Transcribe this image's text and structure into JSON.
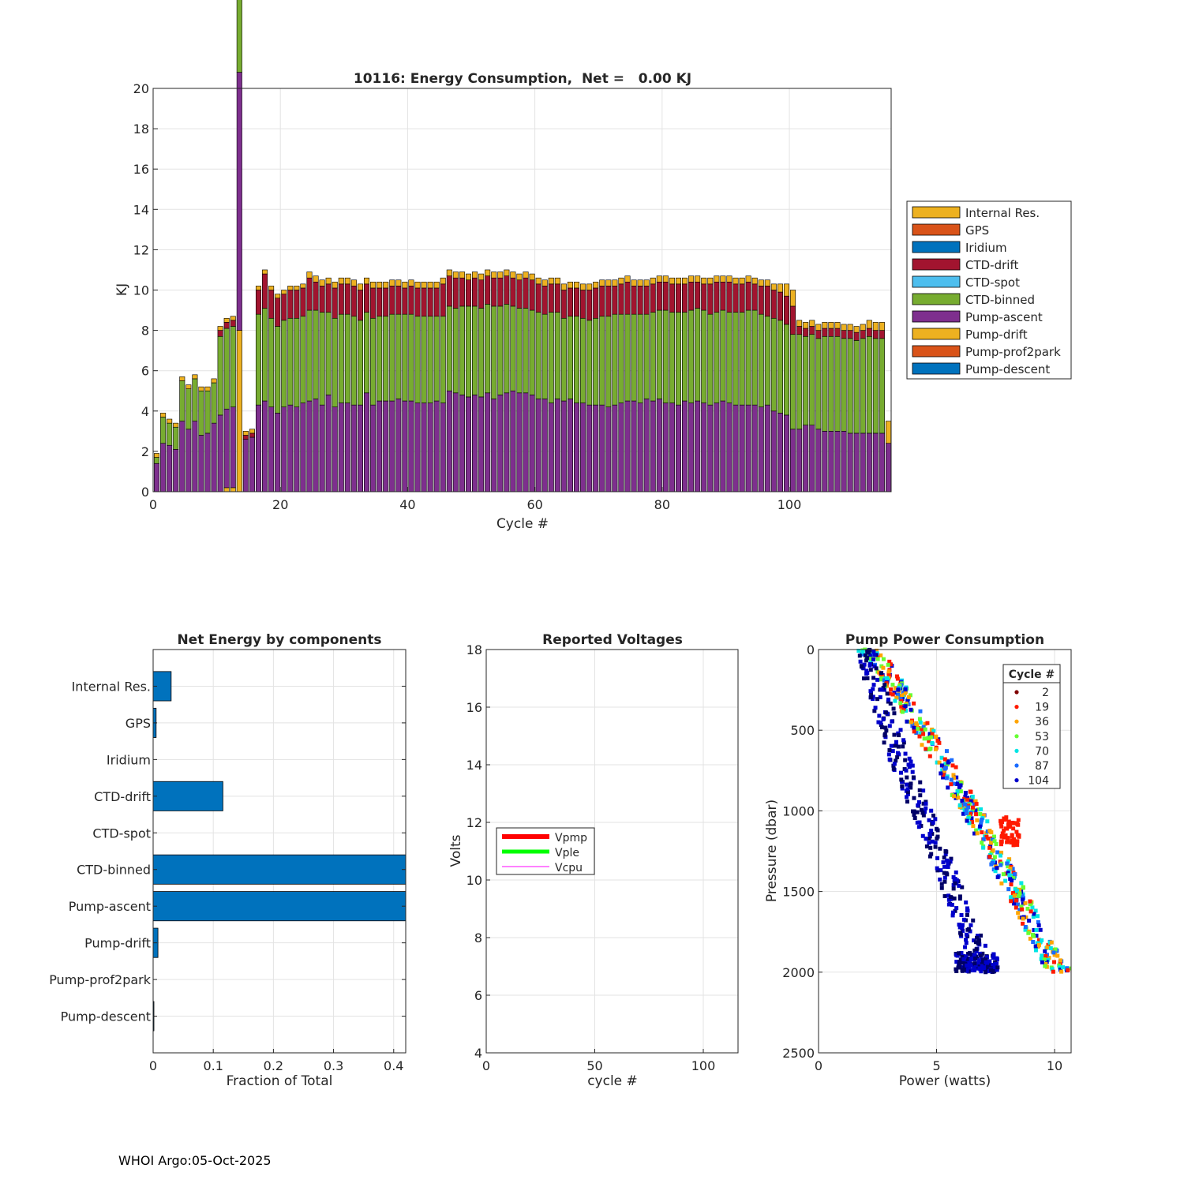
{
  "footer": "WHOI Argo:05-Oct-2025",
  "colors": {
    "internal_res": "#EDB120",
    "gps": "#D95319",
    "iridium": "#0072BD",
    "ctd_drift": "#A2142F",
    "ctd_spot": "#4DBEEE",
    "ctd_binned": "#77AC30",
    "pump_ascent": "#7E2F8E",
    "pump_drift": "#EDB120",
    "pump_prof2park": "#D95319",
    "pump_descent": "#0072BD",
    "hbar": "#0072BD",
    "vpmp": "#FF0000",
    "vple": "#00FF00",
    "vcpu": "#FF00FF"
  },
  "chart_data": [
    {
      "id": "energy",
      "type": "bar",
      "stacked": true,
      "title": "10116: Energy Consumption,  Net =   0.00 KJ",
      "xlabel": "Cycle #",
      "ylabel": "KJ",
      "xlim": [
        0,
        116
      ],
      "ylim": [
        0,
        20
      ],
      "xticks": [
        0,
        20,
        40,
        60,
        80,
        100
      ],
      "yticks": [
        0,
        2,
        4,
        6,
        8,
        10,
        12,
        14,
        16,
        18,
        20
      ],
      "grid": true,
      "legend_position": "outside-right",
      "legend": [
        "Internal Res.",
        "GPS",
        "Iridium",
        "CTD-drift",
        "CTD-spot",
        "CTD-binned",
        "Pump-ascent",
        "Pump-drift",
        "Pump-prof2park",
        "Pump-descent"
      ],
      "cycles": [
        0,
        1,
        2,
        3,
        4,
        5,
        6,
        7,
        8,
        9,
        10,
        11,
        12,
        13,
        14,
        15,
        16,
        17,
        18,
        19,
        20,
        21,
        22,
        23,
        24,
        25,
        26,
        27,
        28,
        29,
        30,
        31,
        32,
        33,
        34,
        35,
        36,
        37,
        38,
        39,
        40,
        41,
        42,
        43,
        44,
        45,
        46,
        47,
        48,
        49,
        50,
        51,
        52,
        53,
        54,
        55,
        56,
        57,
        58,
        59,
        60,
        61,
        62,
        63,
        64,
        65,
        66,
        67,
        68,
        69,
        70,
        71,
        72,
        73,
        74,
        75,
        76,
        77,
        78,
        79,
        80,
        81,
        82,
        83,
        84,
        85,
        86,
        87,
        88,
        89,
        90,
        91,
        92,
        93,
        94,
        95,
        96,
        97,
        98,
        99,
        100,
        101,
        102,
        103,
        104,
        105,
        106,
        107,
        108,
        109,
        110,
        111,
        112,
        113,
        114,
        115
      ],
      "pump_ascent": [
        1.4,
        2.4,
        2.3,
        2.1,
        3.5,
        3.1,
        3.5,
        2.8,
        2.9,
        3.4,
        3.8,
        3.9,
        4.0,
        12.8,
        2.6,
        2.7,
        4.3,
        4.5,
        4.2,
        3.9,
        4.2,
        4.3,
        4.2,
        4.4,
        4.5,
        4.6,
        4.3,
        4.8,
        4.2,
        4.4,
        4.4,
        4.3,
        4.3,
        4.9,
        4.3,
        4.5,
        4.5,
        4.5,
        4.6,
        4.5,
        4.5,
        4.4,
        4.4,
        4.4,
        4.5,
        4.4,
        5.0,
        4.9,
        4.8,
        4.7,
        4.8,
        4.7,
        4.9,
        4.6,
        4.8,
        4.9,
        5.0,
        4.9,
        4.9,
        4.8,
        4.6,
        4.6,
        4.4,
        4.6,
        4.5,
        4.6,
        4.4,
        4.4,
        4.3,
        4.3,
        4.3,
        4.2,
        4.3,
        4.4,
        4.5,
        4.5,
        4.4,
        4.6,
        4.5,
        4.6,
        4.4,
        4.4,
        4.3,
        4.5,
        4.4,
        4.5,
        4.4,
        4.3,
        4.4,
        4.5,
        4.4,
        4.3,
        4.3,
        4.3,
        4.3,
        4.2,
        4.3,
        4.0,
        3.9,
        3.8,
        3.1,
        3.1,
        3.3,
        3.3,
        3.1,
        3.0,
        3.0,
        3.0,
        3.0,
        2.9,
        2.9,
        2.9,
        2.9,
        2.9,
        2.9,
        2.4
      ],
      "ctd_binned": [
        0.3,
        1.3,
        1.1,
        1.1,
        2.0,
        2.0,
        2.1,
        2.2,
        2.1,
        2.0,
        3.9,
        4.0,
        4.0,
        3.8,
        0,
        0,
        4.5,
        4.6,
        4.4,
        4.3,
        4.3,
        4.3,
        4.4,
        4.3,
        4.5,
        4.4,
        4.6,
        4.1,
        4.4,
        4.4,
        4.4,
        4.4,
        4.2,
        4.0,
        4.3,
        4.2,
        4.2,
        4.3,
        4.2,
        4.3,
        4.3,
        4.3,
        4.3,
        4.3,
        4.2,
        4.3,
        4.2,
        4.2,
        4.4,
        4.5,
        4.4,
        4.4,
        4.4,
        4.6,
        4.4,
        4.4,
        4.2,
        4.2,
        4.2,
        4.2,
        4.3,
        4.2,
        4.5,
        4.3,
        4.1,
        4.1,
        4.3,
        4.2,
        4.2,
        4.3,
        4.4,
        4.5,
        4.5,
        4.4,
        4.3,
        4.3,
        4.4,
        4.2,
        4.4,
        4.4,
        4.6,
        4.5,
        4.6,
        4.4,
        4.6,
        4.6,
        4.6,
        4.5,
        4.5,
        4.5,
        4.5,
        4.6,
        4.6,
        4.7,
        4.7,
        4.6,
        4.4,
        4.6,
        4.6,
        4.5,
        4.7,
        4.7,
        4.4,
        4.5,
        4.5,
        4.7,
        4.7,
        4.7,
        4.6,
        4.7,
        4.6,
        4.7,
        4.8,
        4.7,
        4.7,
        0
      ],
      "ctd_drift": [
        0,
        0,
        0,
        0,
        0,
        0,
        0,
        0,
        0,
        0,
        0.3,
        0.3,
        0.3,
        1.7,
        0.2,
        0.2,
        1.2,
        1.7,
        1.4,
        1.4,
        1.3,
        1.4,
        1.4,
        1.4,
        1.6,
        1.4,
        1.3,
        1.4,
        1.5,
        1.5,
        1.5,
        1.5,
        1.5,
        1.4,
        1.5,
        1.4,
        1.4,
        1.4,
        1.4,
        1.3,
        1.4,
        1.4,
        1.4,
        1.4,
        1.4,
        1.6,
        1.5,
        1.5,
        1.4,
        1.3,
        1.4,
        1.4,
        1.4,
        1.4,
        1.4,
        1.4,
        1.4,
        1.4,
        1.5,
        1.5,
        1.4,
        1.4,
        1.4,
        1.4,
        1.4,
        1.4,
        1.4,
        1.4,
        1.5,
        1.5,
        1.5,
        1.5,
        1.4,
        1.5,
        1.6,
        1.4,
        1.4,
        1.4,
        1.4,
        1.4,
        1.4,
        1.4,
        1.4,
        1.4,
        1.4,
        1.3,
        1.3,
        1.5,
        1.5,
        1.4,
        1.5,
        1.4,
        1.4,
        1.4,
        1.3,
        1.4,
        1.5,
        1.4,
        1.4,
        1.4,
        1.4,
        0.4,
        0.4,
        0.4,
        0.4,
        0.4,
        0.4,
        0.4,
        0.4,
        0.4,
        0.4,
        0.4,
        0.4,
        0.4,
        0.4,
        0
      ],
      "internal_res": [
        0.2,
        0.2,
        0.2,
        0.2,
        0.2,
        0.2,
        0.2,
        0.2,
        0.2,
        0.2,
        0.2,
        0.2,
        0.2,
        0.4,
        0.2,
        0.2,
        0.2,
        0.2,
        0.2,
        0.2,
        0.2,
        0.2,
        0.2,
        0.2,
        0.3,
        0.3,
        0.3,
        0.3,
        0.3,
        0.3,
        0.3,
        0.3,
        0.3,
        0.3,
        0.3,
        0.3,
        0.3,
        0.3,
        0.3,
        0.3,
        0.3,
        0.3,
        0.3,
        0.3,
        0.3,
        0.3,
        0.3,
        0.3,
        0.3,
        0.3,
        0.3,
        0.3,
        0.3,
        0.3,
        0.3,
        0.3,
        0.3,
        0.3,
        0.3,
        0.3,
        0.3,
        0.3,
        0.3,
        0.3,
        0.3,
        0.3,
        0.3,
        0.3,
        0.3,
        0.3,
        0.3,
        0.3,
        0.3,
        0.3,
        0.3,
        0.3,
        0.3,
        0.3,
        0.3,
        0.3,
        0.3,
        0.3,
        0.3,
        0.3,
        0.3,
        0.3,
        0.3,
        0.3,
        0.3,
        0.3,
        0.3,
        0.3,
        0.3,
        0.3,
        0.3,
        0.3,
        0.3,
        0.3,
        0.4,
        0.6,
        0.8,
        0.3,
        0.3,
        0.3,
        0.3,
        0.3,
        0.3,
        0.3,
        0.3,
        0.3,
        0.3,
        0.3,
        0.4,
        0.4,
        0.4,
        1.1
      ],
      "pump_drift": [
        0,
        0,
        0,
        0,
        0,
        0,
        0,
        0,
        0,
        0,
        0,
        0.2,
        0.2,
        8.0,
        0,
        0,
        0,
        0,
        0,
        0,
        0,
        0,
        0,
        0,
        0,
        0,
        0,
        0,
        0,
        0,
        0,
        0,
        0,
        0,
        0,
        0,
        0,
        0,
        0,
        0,
        0,
        0,
        0,
        0,
        0,
        0,
        0,
        0,
        0,
        0,
        0,
        0,
        0,
        0,
        0,
        0,
        0,
        0,
        0,
        0,
        0,
        0,
        0,
        0,
        0,
        0,
        0,
        0,
        0,
        0,
        0,
        0,
        0,
        0,
        0,
        0,
        0,
        0,
        0,
        0,
        0,
        0,
        0,
        0,
        0,
        0,
        0,
        0,
        0,
        0,
        0,
        0,
        0,
        0,
        0,
        0,
        0,
        0,
        0,
        0,
        0,
        0,
        0,
        0,
        0,
        0,
        0,
        0,
        0,
        0,
        0,
        0,
        0,
        0,
        0,
        0
      ]
    },
    {
      "id": "components",
      "type": "bar",
      "orientation": "horizontal",
      "title": "Net Energy by components",
      "xlabel": "Fraction of Total",
      "xlim": [
        0,
        0.42
      ],
      "xticks": [
        0,
        0.1,
        0.2,
        0.3,
        0.4
      ],
      "xtick_labels": [
        "0",
        "0.1",
        "0.2",
        "0.3",
        "0.4"
      ],
      "grid": true,
      "categories": [
        "Internal Res.",
        "GPS",
        "Iridium",
        "CTD-drift",
        "CTD-spot",
        "CTD-binned",
        "Pump-ascent",
        "Pump-drift",
        "Pump-prof2park",
        "Pump-descent"
      ],
      "values": [
        0.03,
        0.005,
        0,
        0.116,
        0,
        0.43,
        0.42,
        0.008,
        0,
        0.001
      ]
    },
    {
      "id": "voltages",
      "type": "line",
      "title": "Reported Voltages",
      "xlabel": "cycle #",
      "ylabel": "Volts",
      "xlim": [
        0,
        116
      ],
      "ylim": [
        4,
        18
      ],
      "xticks": [
        0,
        50,
        100
      ],
      "yticks": [
        4,
        6,
        8,
        10,
        12,
        14,
        16,
        18
      ],
      "grid": true,
      "legend": [
        "Vpmp",
        "Vple",
        "Vcpu"
      ],
      "series": [
        {
          "name": "Vpmp",
          "values": []
        },
        {
          "name": "Vple",
          "values": []
        },
        {
          "name": "Vcpu",
          "values": []
        }
      ]
    },
    {
      "id": "pump",
      "type": "scatter",
      "title": "Pump Power Consumption",
      "xlabel": "Power (watts)",
      "ylabel": "Pressure (dbar)",
      "xlim": [
        0,
        10.7
      ],
      "ylim": [
        0,
        2500
      ],
      "y_reversed": true,
      "xticks": [
        0,
        5,
        10
      ],
      "yticks": [
        0,
        500,
        1000,
        1500,
        2000,
        2500
      ],
      "grid": true,
      "legend_title": "Cycle #",
      "legend": [
        {
          "label": "2",
          "color": "#7F0000"
        },
        {
          "label": "19",
          "color": "#FF1A00"
        },
        {
          "label": "36",
          "color": "#FFA500"
        },
        {
          "label": "53",
          "color": "#66FF33"
        },
        {
          "label": "70",
          "color": "#00E5E5"
        },
        {
          "label": "87",
          "color": "#1A6BFF"
        },
        {
          "label": "104",
          "color": "#0000CC"
        }
      ],
      "series": [
        {
          "name": "fast-group",
          "x": [
            2.0,
            2.5,
            3.0,
            3.5,
            4.0,
            4.5,
            5.0,
            5.5,
            6.0,
            6.5,
            7.0,
            7.5,
            8.0,
            8.5,
            9.0,
            9.5,
            10.0,
            10.4
          ],
          "y": [
            0,
            60,
            170,
            280,
            400,
            520,
            630,
            760,
            880,
            1000,
            1130,
            1260,
            1400,
            1540,
            1680,
            1820,
            1960,
            2000
          ]
        },
        {
          "name": "slow-group",
          "x": [
            1.9,
            2.2,
            2.5,
            2.8,
            3.1,
            3.4,
            3.8,
            4.2,
            4.6,
            5.0,
            5.4,
            5.8,
            6.2,
            6.6,
            7.0,
            7.2
          ],
          "y": [
            0,
            120,
            250,
            380,
            520,
            660,
            800,
            940,
            1080,
            1220,
            1380,
            1530,
            1680,
            1830,
            1960,
            2000
          ]
        }
      ]
    }
  ]
}
